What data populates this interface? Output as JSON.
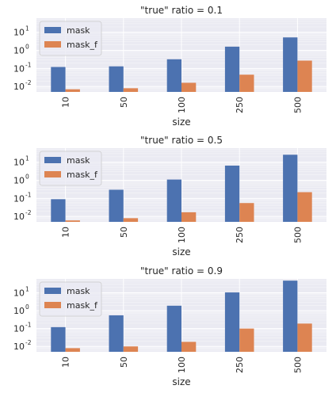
{
  "chart_data": [
    {
      "type": "bar",
      "title": "\"true\" ratio = 0.1",
      "xlabel": "size",
      "ylabel": "",
      "y_scale": "log",
      "ylim": [
        0.005,
        60
      ],
      "yticks": [
        0.01,
        0.1,
        1,
        10
      ],
      "ytick_labels": [
        "10",
        "10",
        "10",
        "10"
      ],
      "ytick_exponents": [
        "-2",
        "-1",
        "0",
        "1"
      ],
      "categories": [
        "10",
        "50",
        "100",
        "250",
        "500"
      ],
      "series": [
        {
          "name": "mask",
          "values": [
            0.12,
            0.13,
            0.32,
            1.6,
            5.2
          ],
          "color": "#4c72b0"
        },
        {
          "name": "mask_f",
          "values": [
            0.007,
            0.008,
            0.016,
            0.045,
            0.27
          ],
          "color": "#dd8452"
        }
      ],
      "legend_position": "upper-left",
      "grid": true
    },
    {
      "type": "bar",
      "title": "\"true\" ratio = 0.5",
      "xlabel": "size",
      "ylabel": "",
      "y_scale": "log",
      "ylim": [
        0.005,
        60
      ],
      "yticks": [
        0.01,
        0.1,
        1,
        10
      ],
      "ytick_labels": [
        "10",
        "10",
        "10",
        "10"
      ],
      "ytick_exponents": [
        "-2",
        "-1",
        "0",
        "1"
      ],
      "categories": [
        "10",
        "50",
        "100",
        "250",
        "500"
      ],
      "series": [
        {
          "name": "mask",
          "values": [
            0.09,
            0.3,
            1.1,
            6.5,
            26
          ],
          "color": "#4c72b0"
        },
        {
          "name": "mask_f",
          "values": [
            0.006,
            0.008,
            0.017,
            0.055,
            0.22
          ],
          "color": "#dd8452"
        }
      ],
      "legend_position": "upper-left",
      "grid": true
    },
    {
      "type": "bar",
      "title": "\"true\" ratio = 0.9",
      "xlabel": "size",
      "ylabel": "",
      "y_scale": "log",
      "ylim": [
        0.005,
        60
      ],
      "yticks": [
        0.01,
        0.1,
        1,
        10
      ],
      "ytick_labels": [
        "10",
        "10",
        "10",
        "10"
      ],
      "ytick_exponents": [
        "-2",
        "-1",
        "0",
        "1"
      ],
      "categories": [
        "10",
        "50",
        "100",
        "250",
        "500"
      ],
      "series": [
        {
          "name": "mask",
          "values": [
            0.12,
            0.55,
            1.9,
            10.5,
            48
          ],
          "color": "#4c72b0"
        },
        {
          "name": "mask_f",
          "values": [
            0.008,
            0.01,
            0.018,
            0.1,
            0.19
          ],
          "color": "#dd8452"
        }
      ],
      "legend_position": "upper-left",
      "grid": true
    }
  ]
}
